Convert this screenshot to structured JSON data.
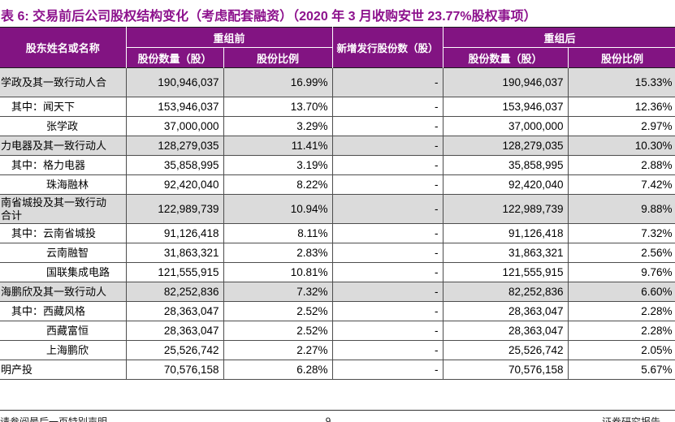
{
  "title": "表 6: 交易前后公司股权结构变化（考虑配套融资）（2020 年 3 月收购安世 23.77%股权事项）",
  "colors": {
    "header_purple": "#821482",
    "title_purple": "#8d128d",
    "row_shade_gray": "#dbdbdb",
    "border_dark": "#4d4d4d"
  },
  "table": {
    "header": {
      "shareholder": "股东姓名或名称",
      "pre_group": "重组前",
      "new_shares": "新增发行股份数（股）",
      "post_group": "重组后",
      "shares_label": "股份数量（股）",
      "ratio_label": "股份比例"
    },
    "rows": [
      {
        "name": "学政及其一致行动人合",
        "indent": 0,
        "shade": true,
        "tall": true,
        "pre_shares": "190,946,037",
        "pre_ratio": "16.99%",
        "new_shares": "-",
        "post_shares": "190,946,037",
        "post_ratio": "15.33%"
      },
      {
        "name": "其中：闻天下",
        "indent": 1,
        "shade": false,
        "tall": false,
        "pre_shares": "153,946,037",
        "pre_ratio": "13.70%",
        "new_shares": "-",
        "post_shares": "153,946,037",
        "post_ratio": "12.36%"
      },
      {
        "name": "张学政",
        "indent": 2,
        "shade": false,
        "tall": false,
        "pre_shares": "37,000,000",
        "pre_ratio": "3.29%",
        "new_shares": "-",
        "post_shares": "37,000,000",
        "post_ratio": "2.97%"
      },
      {
        "name": "力电器及其一致行动人",
        "indent": 0,
        "shade": true,
        "tall": false,
        "pre_shares": "128,279,035",
        "pre_ratio": "11.41%",
        "new_shares": "-",
        "post_shares": "128,279,035",
        "post_ratio": "10.30%"
      },
      {
        "name": "其中：格力电器",
        "indent": 1,
        "shade": false,
        "tall": false,
        "pre_shares": "35,858,995",
        "pre_ratio": "3.19%",
        "new_shares": "-",
        "post_shares": "35,858,995",
        "post_ratio": "2.88%"
      },
      {
        "name": "珠海融林",
        "indent": 2,
        "shade": false,
        "tall": false,
        "pre_shares": "92,420,040",
        "pre_ratio": "8.22%",
        "new_shares": "-",
        "post_shares": "92,420,040",
        "post_ratio": "7.42%"
      },
      {
        "name": "南省城投及其一致行动\n合计",
        "indent": 0,
        "shade": true,
        "tall": true,
        "pre_shares": "122,989,739",
        "pre_ratio": "10.94%",
        "new_shares": "-",
        "post_shares": "122,989,739",
        "post_ratio": "9.88%"
      },
      {
        "name": "其中：云南省城投",
        "indent": 1,
        "shade": false,
        "tall": false,
        "pre_shares": "91,126,418",
        "pre_ratio": "8.11%",
        "new_shares": "-",
        "post_shares": "91,126,418",
        "post_ratio": "7.32%"
      },
      {
        "name": "云南融智",
        "indent": 2,
        "shade": false,
        "tall": false,
        "pre_shares": "31,863,321",
        "pre_ratio": "2.83%",
        "new_shares": "-",
        "post_shares": "31,863,321",
        "post_ratio": "2.56%"
      },
      {
        "name": "国联集成电路",
        "indent": 2,
        "shade": false,
        "tall": false,
        "pre_shares": "121,555,915",
        "pre_ratio": "10.81%",
        "new_shares": "-",
        "post_shares": "121,555,915",
        "post_ratio": "9.76%"
      },
      {
        "name": "海鹏欣及其一致行动人",
        "indent": 0,
        "shade": true,
        "tall": false,
        "pre_shares": "82,252,836",
        "pre_ratio": "7.32%",
        "new_shares": "-",
        "post_shares": "82,252,836",
        "post_ratio": "6.60%"
      },
      {
        "name": "其中：西藏风格",
        "indent": 1,
        "shade": false,
        "tall": false,
        "pre_shares": "28,363,047",
        "pre_ratio": "2.52%",
        "new_shares": "-",
        "post_shares": "28,363,047",
        "post_ratio": "2.28%"
      },
      {
        "name": "西藏富恒",
        "indent": 2,
        "shade": false,
        "tall": false,
        "pre_shares": "28,363,047",
        "pre_ratio": "2.52%",
        "new_shares": "-",
        "post_shares": "28,363,047",
        "post_ratio": "2.28%"
      },
      {
        "name": "上海鹏欣",
        "indent": 2,
        "shade": false,
        "tall": false,
        "pre_shares": "25,526,742",
        "pre_ratio": "2.27%",
        "new_shares": "-",
        "post_shares": "25,526,742",
        "post_ratio": "2.05%"
      },
      {
        "name": "明产投",
        "indent": 0,
        "shade": false,
        "tall": false,
        "pre_shares": "70,576,158",
        "pre_ratio": "6.28%",
        "new_shares": "-",
        "post_shares": "70,576,158",
        "post_ratio": "5.67%"
      }
    ]
  },
  "footer": {
    "left": "请参阅最后一页特别声明",
    "page": "9",
    "right": "证券研究报告"
  }
}
